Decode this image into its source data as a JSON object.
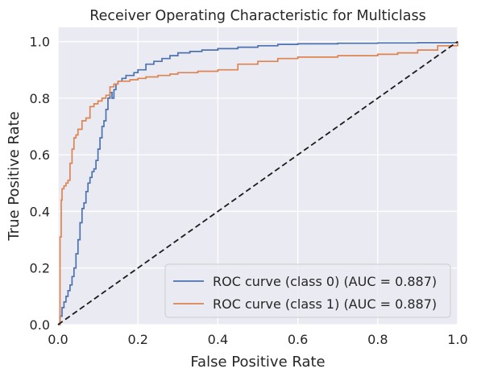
{
  "chart_data": {
    "type": "line",
    "title": "Receiver Operating Characteristic for Multiclass",
    "xlabel": "False Positive Rate",
    "ylabel": "True Positive Rate",
    "xlim": [
      0.0,
      1.0
    ],
    "ylim": [
      0.0,
      1.05
    ],
    "xticks": [
      0.0,
      0.2,
      0.4,
      0.6,
      0.8,
      1.0
    ],
    "yticks": [
      0.0,
      0.2,
      0.4,
      0.6,
      0.8,
      1.0
    ],
    "xtick_labels": [
      "0.0",
      "0.2",
      "0.4",
      "0.6",
      "0.8",
      "1.0"
    ],
    "ytick_labels": [
      "0.0",
      "0.2",
      "0.4",
      "0.6",
      "0.8",
      "1.0"
    ],
    "grid": true,
    "legend_position": "lower-right",
    "style": {
      "background": "#eaeaf2",
      "grid_color": "#ffffff"
    },
    "series": [
      {
        "name": "ROC curve (class 0) (AUC = 0.887)",
        "color": "#4c72b0",
        "x": [
          0.0,
          0.005,
          0.01,
          0.015,
          0.02,
          0.025,
          0.03,
          0.035,
          0.04,
          0.045,
          0.05,
          0.055,
          0.06,
          0.065,
          0.07,
          0.075,
          0.08,
          0.085,
          0.09,
          0.095,
          0.1,
          0.105,
          0.11,
          0.115,
          0.12,
          0.125,
          0.13,
          0.135,
          0.14,
          0.145,
          0.15,
          0.16,
          0.17,
          0.18,
          0.19,
          0.2,
          0.22,
          0.24,
          0.26,
          0.28,
          0.3,
          0.33,
          0.36,
          0.4,
          0.45,
          0.5,
          0.55,
          0.6,
          0.65,
          0.7,
          0.8,
          0.9,
          1.0
        ],
        "y": [
          0.0,
          0.03,
          0.06,
          0.08,
          0.1,
          0.12,
          0.14,
          0.17,
          0.2,
          0.25,
          0.3,
          0.36,
          0.41,
          0.43,
          0.47,
          0.5,
          0.52,
          0.54,
          0.55,
          0.58,
          0.62,
          0.66,
          0.7,
          0.72,
          0.76,
          0.8,
          0.82,
          0.8,
          0.83,
          0.85,
          0.86,
          0.87,
          0.88,
          0.88,
          0.89,
          0.9,
          0.92,
          0.93,
          0.94,
          0.95,
          0.96,
          0.965,
          0.97,
          0.975,
          0.98,
          0.985,
          0.99,
          0.992,
          0.992,
          0.994,
          0.995,
          0.996,
          1.0
        ]
      },
      {
        "name": "ROC curve (class 1) (AUC = 0.887)",
        "color": "#dd8452",
        "x": [
          0.0,
          0.005,
          0.008,
          0.01,
          0.015,
          0.02,
          0.025,
          0.03,
          0.035,
          0.04,
          0.045,
          0.05,
          0.06,
          0.07,
          0.08,
          0.09,
          0.1,
          0.11,
          0.12,
          0.13,
          0.14,
          0.15,
          0.16,
          0.18,
          0.2,
          0.22,
          0.25,
          0.28,
          0.3,
          0.35,
          0.4,
          0.45,
          0.5,
          0.55,
          0.6,
          0.7,
          0.8,
          0.85,
          0.9,
          0.95,
          1.0
        ],
        "y": [
          0.0,
          0.31,
          0.44,
          0.48,
          0.49,
          0.5,
          0.51,
          0.57,
          0.62,
          0.66,
          0.67,
          0.69,
          0.72,
          0.73,
          0.77,
          0.78,
          0.79,
          0.8,
          0.81,
          0.84,
          0.85,
          0.86,
          0.86,
          0.865,
          0.87,
          0.875,
          0.88,
          0.885,
          0.89,
          0.895,
          0.9,
          0.92,
          0.93,
          0.94,
          0.945,
          0.95,
          0.955,
          0.96,
          0.97,
          0.985,
          1.0
        ]
      },
      {
        "name": "",
        "color": "#1a1a1a",
        "dashed": true,
        "x": [
          0.0,
          1.0
        ],
        "y": [
          0.0,
          1.0
        ]
      }
    ]
  }
}
